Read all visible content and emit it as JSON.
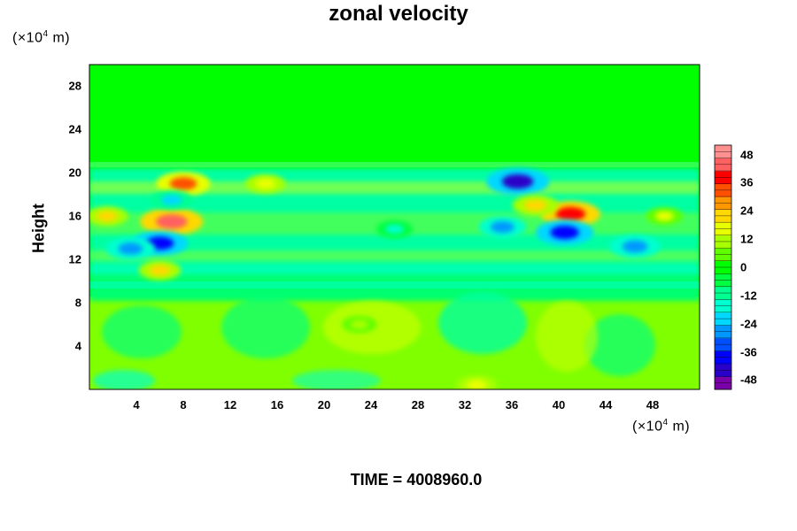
{
  "chart_data": {
    "type": "heatmap",
    "title": "zonal velocity",
    "ylabel": "Height",
    "xlabel": "",
    "x_unit_prefix": "(×10",
    "x_unit_exp": "4",
    "x_unit_suffix": " m)",
    "y_unit_prefix": "(×10",
    "y_unit_exp": "4",
    "y_unit_suffix": " m)",
    "xlim": [
      0,
      52
    ],
    "ylim": [
      0,
      30
    ],
    "xticks": [
      "4",
      "8",
      "12",
      "16",
      "20",
      "24",
      "28",
      "32",
      "36",
      "40",
      "44",
      "48"
    ],
    "yticks": [
      "4",
      "8",
      "12",
      "16",
      "20",
      "24",
      "28"
    ],
    "colorbar": {
      "range": [
        -52,
        52
      ],
      "tick_labels": [
        "48",
        "36",
        "24",
        "12",
        "0",
        "-12",
        "-24",
        "-36",
        "-48"
      ],
      "tick_values": [
        48,
        36,
        24,
        12,
        0,
        -12,
        -24,
        -36,
        -48
      ],
      "colors": [
        "#7a00a8",
        "#2a00c8",
        "#0000ff",
        "#0050ff",
        "#0098ff",
        "#00d8ff",
        "#00ffd0",
        "#00ff90",
        "#00ff40",
        "#00ff00",
        "#60ff00",
        "#a8ff00",
        "#e8ff00",
        "#ffd800",
        "#ff9800",
        "#ff5000",
        "#ff0000",
        "#ff6060",
        "#ff9090"
      ]
    },
    "features": [
      {
        "x": 7,
        "y": 15.5,
        "value": 44
      },
      {
        "x": 8,
        "y": 19,
        "value": 34
      },
      {
        "x": 6,
        "y": 13.5,
        "value": -36
      },
      {
        "x": 3.5,
        "y": 13,
        "value": -28
      },
      {
        "x": 7,
        "y": 17.5,
        "value": -20
      },
      {
        "x": 36.5,
        "y": 19.2,
        "value": -44
      },
      {
        "x": 41,
        "y": 16.2,
        "value": 40
      },
      {
        "x": 38,
        "y": 17,
        "value": 24
      },
      {
        "x": 40.5,
        "y": 14.5,
        "value": -38
      },
      {
        "x": 46.5,
        "y": 13.2,
        "value": -30
      },
      {
        "x": 35.2,
        "y": 15,
        "value": -26
      },
      {
        "x": 26,
        "y": 14.8,
        "value": -14
      },
      {
        "x": 15,
        "y": 19,
        "value": 18
      },
      {
        "x": 1.5,
        "y": 16,
        "value": 20
      },
      {
        "x": 6,
        "y": 11,
        "value": 20
      },
      {
        "x": 33,
        "y": 0.4,
        "value": 18
      },
      {
        "x": 23,
        "y": 6,
        "value": 12
      },
      {
        "x": 49,
        "y": 16,
        "value": 14
      }
    ]
  },
  "footer": {
    "time_label": "TIME = 4008960.0"
  }
}
